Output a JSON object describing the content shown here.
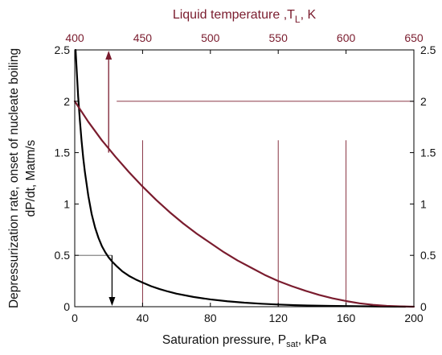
{
  "colors": {
    "accent": "#7a1c2e",
    "black_curve": "#000000",
    "axis": "#000000"
  },
  "chart_data": {
    "type": "line",
    "grid": false,
    "xlabel": "Saturation pressure, P",
    "xlabel_sub": "sat",
    "xlabel_tail": ", kPa",
    "xlim": [
      0,
      200
    ],
    "xticks": [
      0,
      40,
      80,
      120,
      160,
      200
    ],
    "x2label": "Liquid temperature ,T",
    "x2label_sub": "L",
    "x2label_tail": ", K",
    "x2lim": [
      400,
      650
    ],
    "x2ticks": [
      400,
      450,
      500,
      550,
      600,
      650
    ],
    "ylabel_line1": "Depressurization rate, onset of nucleate boiling",
    "ylabel_line2": "dP/dt, Matm/s",
    "ylim": [
      0,
      2.5
    ],
    "yticks": [
      "0",
      "0.5",
      "1",
      "1.5",
      "2",
      "2.5"
    ],
    "series": [
      {
        "axis": "bottom",
        "color": "#000000",
        "x": [
          0.5,
          1,
          2,
          3,
          4,
          5,
          6,
          8,
          10,
          12,
          14,
          16,
          18,
          20,
          22,
          25,
          28,
          32,
          36,
          40,
          45,
          50,
          55,
          60,
          70,
          80,
          90,
          100,
          110,
          120,
          130,
          140,
          150,
          160,
          170,
          180,
          190,
          195
        ],
        "y": [
          2.5,
          2.35,
          2.05,
          1.82,
          1.62,
          1.45,
          1.31,
          1.08,
          0.9,
          0.77,
          0.67,
          0.59,
          0.53,
          0.48,
          0.44,
          0.39,
          0.345,
          0.3,
          0.265,
          0.235,
          0.2,
          0.172,
          0.148,
          0.127,
          0.095,
          0.071,
          0.053,
          0.039,
          0.029,
          0.021,
          0.015,
          0.011,
          0.008,
          0.006,
          0.004,
          0.002,
          0.001,
          0.0
        ]
      },
      {
        "axis": "top",
        "color": "#7a1c2e",
        "x": [
          400,
          410,
          420,
          430,
          440,
          450,
          460,
          470,
          480,
          490,
          500,
          510,
          520,
          530,
          540,
          550,
          560,
          570,
          580,
          590,
          600,
          610,
          620,
          630,
          640,
          650
        ],
        "y": [
          2.0,
          1.8,
          1.62,
          1.46,
          1.31,
          1.17,
          1.04,
          0.92,
          0.81,
          0.71,
          0.62,
          0.53,
          0.45,
          0.38,
          0.31,
          0.25,
          0.2,
          0.155,
          0.115,
          0.082,
          0.055,
          0.033,
          0.018,
          0.008,
          0.003,
          0.0
        ]
      }
    ],
    "annotations": {
      "black_arrow_pressure_kPa": 22,
      "black_arrow_rate_from": 0.5,
      "accent_arrow_temperature_K": 425,
      "accent_arrow_rate_from": 1.5,
      "guide_rate_level": 2.0,
      "vertical_guides_kPa": [
        40,
        120,
        160
      ],
      "vertical_guides_top": 1.62
    }
  }
}
